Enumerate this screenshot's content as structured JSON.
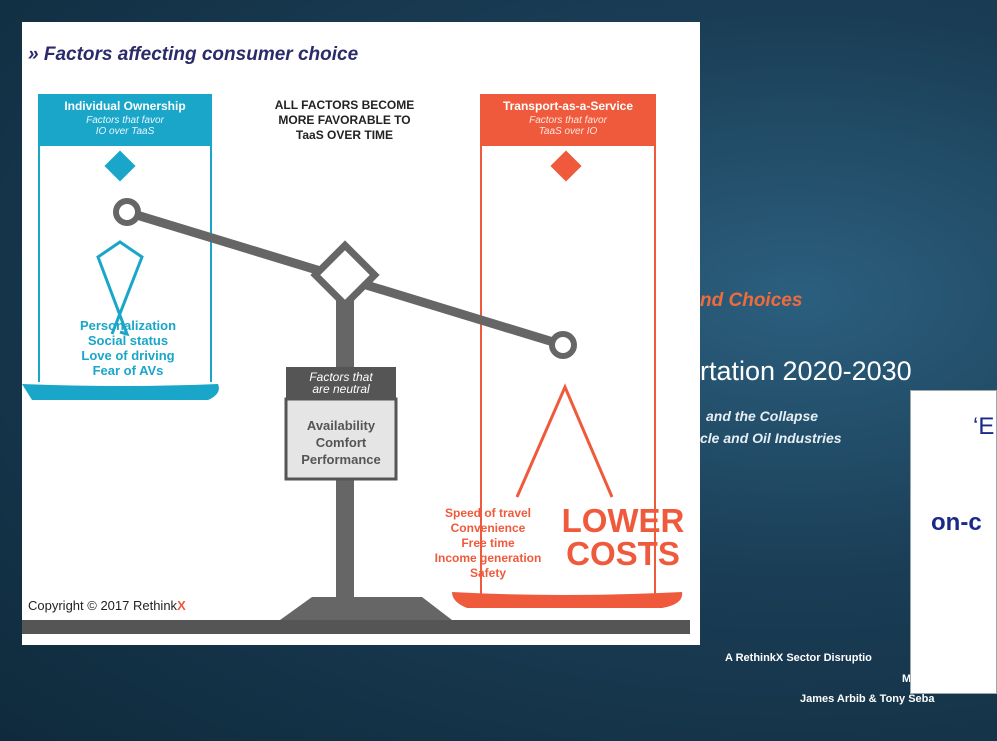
{
  "background": {
    "subtitle_fragment": "nd Choices",
    "title_fragment": "rtation 2020-2030",
    "tagline": [
      "and the Collapse",
      "cle and Oil Industries"
    ],
    "footer": [
      "A RethinkX Sector Disruptio",
      "M",
      "James Arbib & Tony Seba"
    ],
    "popup": [
      "‘E",
      "on-c"
    ]
  },
  "infographic": {
    "title": "» Factors affecting consumer choice",
    "individual_ownership": {
      "heading": "Individual Ownership",
      "subheading": [
        "Factors that favor",
        "IO over TaaS"
      ],
      "factors": [
        "Personalization",
        "Social status",
        "Love of driving",
        "Fear of AVs"
      ]
    },
    "center_note": [
      "ALL FACTORS BECOME",
      "MORE FAVORABLE TO",
      "TaaS OVER TIME"
    ],
    "transport_as_a_service": {
      "heading": "Transport-as-a-Service",
      "subheading": [
        "Factors that favor",
        "TaaS over IO"
      ],
      "factors": [
        "Speed of travel",
        "Convenience",
        "Free time",
        "Income generation",
        "Safety"
      ],
      "highlight": [
        "LOWER",
        "COSTS"
      ]
    },
    "neutral": {
      "heading": [
        "Factors that",
        "are neutral"
      ],
      "factors": [
        "Availability",
        "Comfort",
        "Performance"
      ]
    },
    "copyright": {
      "text": "Copyright © 2017 Rethink",
      "brand_mark": "X"
    }
  }
}
